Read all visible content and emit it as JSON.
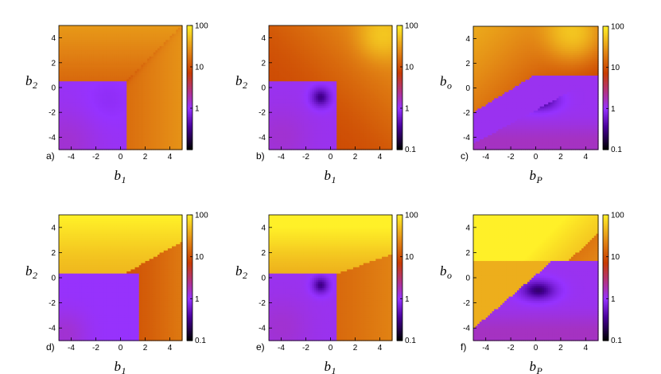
{
  "chart_data": [
    {
      "type": "heatmap",
      "panel_label": "a)",
      "xlabel": "b",
      "xlabel_sub": "1",
      "ylabel": "b",
      "ylabel_sub": "2",
      "xlim": [
        -5,
        5
      ],
      "ylim": [
        -5,
        5
      ],
      "xticks": [
        "-4",
        "-2",
        "0",
        "2",
        "4"
      ],
      "yticks": [
        "4",
        "2",
        "0",
        "-2",
        "-4"
      ],
      "colorbar": {
        "scale": "log",
        "range": [
          0.1,
          100
        ],
        "ticks": [
          "100",
          "10",
          "1"
        ]
      },
      "regions": [
        {
          "description_value": "low (≈1) for b1<0.5 and b2<0.5"
        },
        {
          "description_value": "moderate (≈10–30) elsewhere, diagonal ridge from (0.5,0.5) to (5,5)"
        }
      ]
    },
    {
      "type": "heatmap",
      "panel_label": "b)",
      "xlabel": "b",
      "xlabel_sub": "1",
      "ylabel": "b",
      "ylabel_sub": "2",
      "xlim": [
        -5,
        5
      ],
      "ylim": [
        -5,
        5
      ],
      "xticks": [
        "-4",
        "-2",
        "0",
        "2",
        "4"
      ],
      "yticks": [
        "4",
        "2",
        "0",
        "-2",
        "-4"
      ],
      "colorbar": {
        "scale": "log",
        "range": [
          0.1,
          100
        ],
        "ticks": [
          "100",
          "10",
          "1",
          "0.1"
        ]
      },
      "minimum": [
        -0.8,
        -0.8
      ],
      "maximum_region": [
        4,
        4
      ]
    },
    {
      "type": "heatmap",
      "panel_label": "c)",
      "xlabel": "b",
      "xlabel_sub": "P",
      "ylabel": "b",
      "ylabel_sub": "o",
      "xlim": [
        -5,
        5
      ],
      "ylim": [
        -5,
        5
      ],
      "xticks": [
        "-4",
        "-2",
        "0",
        "2",
        "4"
      ],
      "yticks": [
        "4",
        "2",
        "0",
        "-2",
        "-4"
      ],
      "colorbar": {
        "scale": "log",
        "range": [
          0.1,
          100
        ],
        "ticks": [
          "100",
          "10",
          "1",
          "0.1"
        ]
      },
      "minimum": [
        0,
        -1
      ]
    },
    {
      "type": "heatmap",
      "panel_label": "d)",
      "xlabel": "b",
      "xlabel_sub": "1",
      "ylabel": "b",
      "ylabel_sub": "2",
      "xlim": [
        -5,
        5
      ],
      "ylim": [
        -5,
        5
      ],
      "xticks": [
        "-4",
        "-2",
        "0",
        "2",
        "4"
      ],
      "yticks": [
        "4",
        "2",
        "0",
        "-2",
        "-4"
      ],
      "colorbar": {
        "scale": "log",
        "range": [
          0.1,
          100
        ],
        "ticks": [
          "100",
          "10",
          "1",
          "0.1"
        ]
      }
    },
    {
      "type": "heatmap",
      "panel_label": "e)",
      "xlabel": "b",
      "xlabel_sub": "1",
      "ylabel": "b",
      "ylabel_sub": "2",
      "xlim": [
        -5,
        5
      ],
      "ylim": [
        -5,
        5
      ],
      "xticks": [
        "-4",
        "-2",
        "0",
        "2",
        "4"
      ],
      "yticks": [
        "4",
        "2",
        "0",
        "-2",
        "-4"
      ],
      "colorbar": {
        "scale": "log",
        "range": [
          0.1,
          100
        ],
        "ticks": [
          "100",
          "10",
          "1",
          "0.1"
        ]
      },
      "minimum": [
        -0.8,
        -0.6
      ]
    },
    {
      "type": "heatmap",
      "panel_label": "f)",
      "xlabel": "b",
      "xlabel_sub": "P",
      "ylabel": "b",
      "ylabel_sub": "o",
      "xlim": [
        -5,
        5
      ],
      "ylim": [
        -5,
        5
      ],
      "xticks": [
        "-4",
        "-2",
        "0",
        "2",
        "4"
      ],
      "yticks": [
        "4",
        "2",
        "0",
        "-2",
        "-4"
      ],
      "colorbar": {
        "scale": "log",
        "range": [
          0.1,
          100
        ],
        "ticks": [
          "100",
          "10",
          "1",
          "0.1"
        ]
      },
      "minimum": [
        0,
        -1
      ]
    }
  ]
}
